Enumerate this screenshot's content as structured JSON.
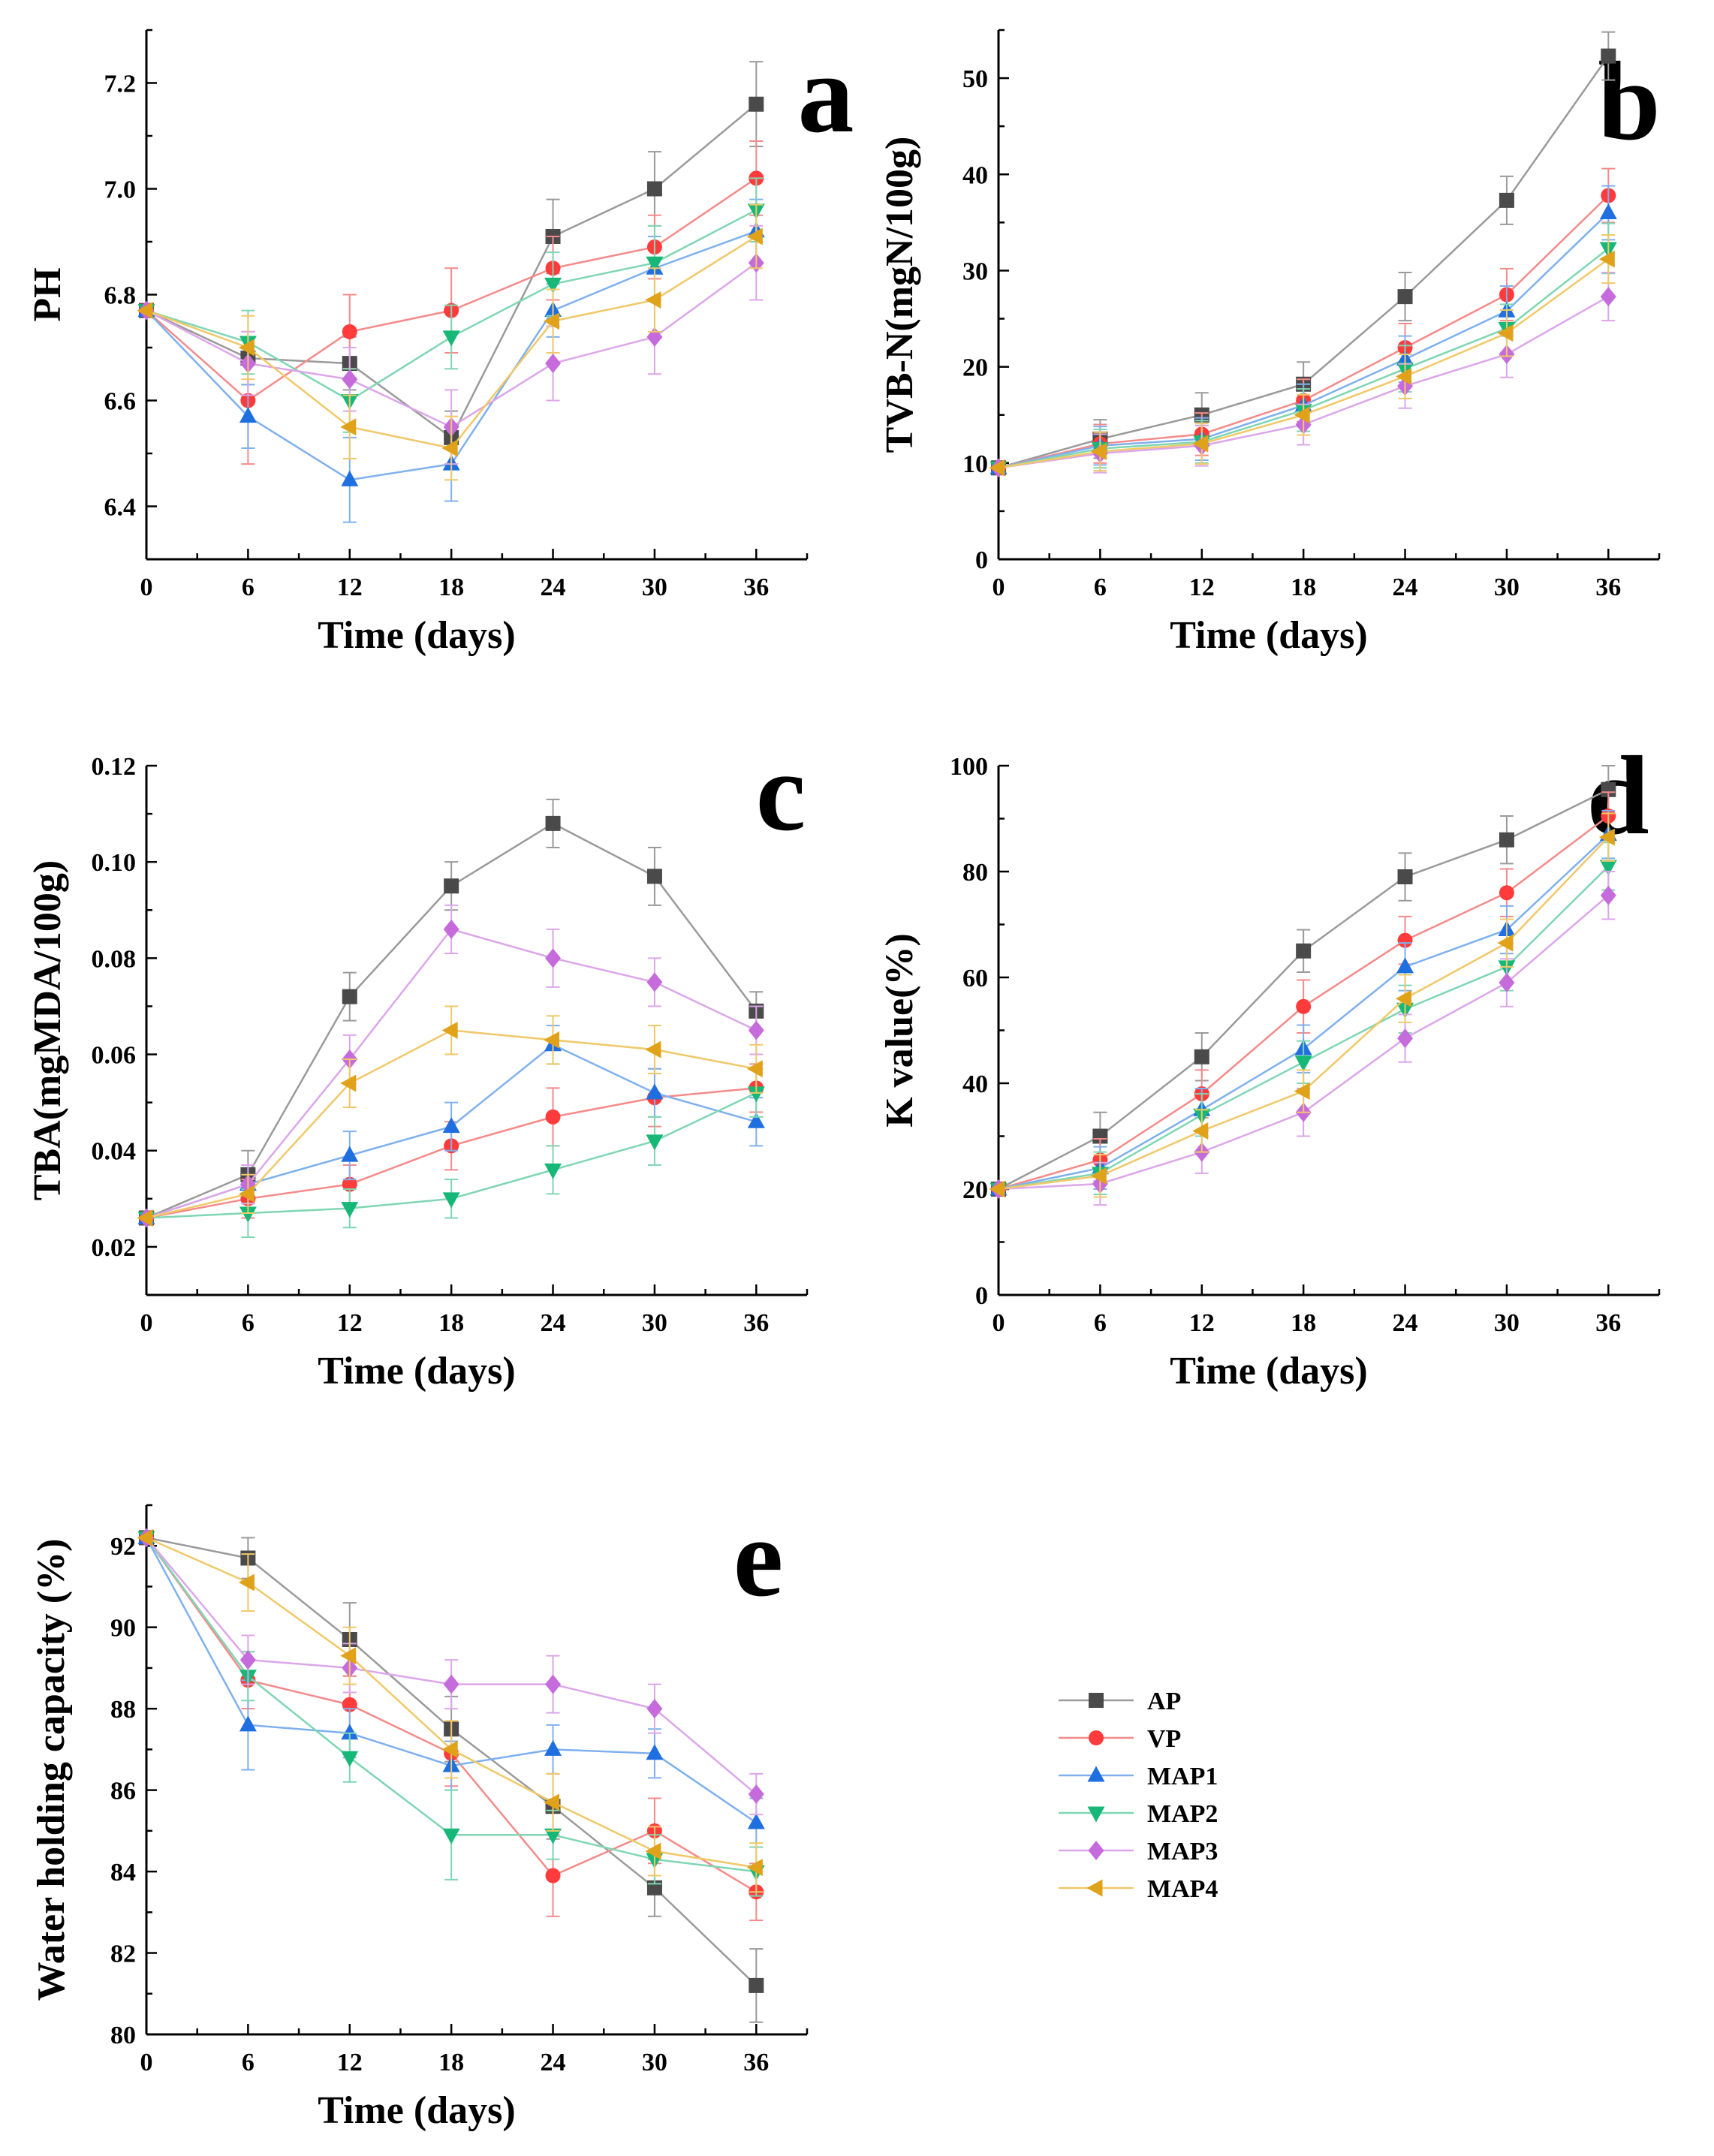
{
  "colors": {
    "AP": "#4a4a4a",
    "VP": "#ff3b3b",
    "MAP1": "#1f6fe0",
    "MAP2": "#17b877",
    "MAP3": "#c66bdc",
    "MAP4": "#e0a21a",
    "AP_line": "#9a9a9a",
    "VP_line": "#f58a8a",
    "MAP1_line": "#7fb0ee",
    "MAP2_line": "#7fd6b3",
    "MAP3_line": "#dca6ea",
    "MAP4_line": "#f0c868"
  },
  "legend": [
    "AP",
    "VP",
    "MAP1",
    "MAP2",
    "MAP3",
    "MAP4"
  ],
  "chart_data": [
    {
      "id": "a",
      "type": "line",
      "panel_label": "a",
      "xlabel": "Time (days)",
      "ylabel": "PH",
      "x": [
        0,
        6,
        12,
        18,
        24,
        30,
        36
      ],
      "x_ticks": [
        "0",
        "6",
        "12",
        "18",
        "24",
        "30",
        "36"
      ],
      "xlim": [
        0,
        39
      ],
      "ylim": [
        6.3,
        7.3
      ],
      "y_ticks": [
        6.4,
        6.6,
        6.8,
        7.0,
        7.2
      ],
      "y_tick_labels": [
        "6.4",
        "6.6",
        "6.8",
        "7.0",
        "7.2"
      ],
      "series": [
        {
          "name": "AP",
          "marker": "square",
          "values": [
            6.77,
            6.68,
            6.67,
            6.53,
            6.91,
            7.0,
            7.16
          ],
          "errors": [
            0.0,
            0.05,
            0.05,
            0.05,
            0.07,
            0.07,
            0.08
          ]
        },
        {
          "name": "VP",
          "marker": "circle",
          "values": [
            6.77,
            6.6,
            6.73,
            6.77,
            6.85,
            6.89,
            7.02
          ],
          "errors": [
            0.0,
            0.12,
            0.07,
            0.08,
            0.06,
            0.06,
            0.07
          ]
        },
        {
          "name": "MAP1",
          "marker": "triangle-up",
          "values": [
            6.77,
            6.57,
            6.45,
            6.48,
            6.77,
            6.85,
            6.92
          ],
          "errors": [
            0.0,
            0.06,
            0.08,
            0.07,
            0.05,
            0.06,
            0.06
          ]
        },
        {
          "name": "MAP2",
          "marker": "triangle-down",
          "values": [
            6.77,
            6.71,
            6.6,
            6.72,
            6.82,
            6.86,
            6.96
          ],
          "errors": [
            0.0,
            0.06,
            0.06,
            0.06,
            0.06,
            0.07,
            0.06
          ]
        },
        {
          "name": "MAP3",
          "marker": "diamond",
          "values": [
            6.77,
            6.67,
            6.64,
            6.55,
            6.67,
            6.72,
            6.86
          ],
          "errors": [
            0.0,
            0.06,
            0.06,
            0.07,
            0.07,
            0.07,
            0.07
          ]
        },
        {
          "name": "MAP4",
          "marker": "triangle-left",
          "values": [
            6.77,
            6.7,
            6.55,
            6.51,
            6.75,
            6.79,
            6.91
          ],
          "errors": [
            0.0,
            0.06,
            0.06,
            0.06,
            0.06,
            0.06,
            0.06
          ]
        }
      ]
    },
    {
      "id": "b",
      "type": "line",
      "panel_label": "b",
      "xlabel": "Time (days)",
      "ylabel": "TVB-N(mgN/100g)",
      "x": [
        0,
        6,
        12,
        18,
        24,
        30,
        36
      ],
      "x_ticks": [
        "0",
        "6",
        "12",
        "18",
        "24",
        "30",
        "36"
      ],
      "xlim": [
        0,
        39
      ],
      "ylim": [
        0,
        55
      ],
      "y_ticks": [
        0,
        10,
        20,
        30,
        40,
        50
      ],
      "y_tick_labels": [
        "0",
        "10",
        "20",
        "30",
        "40",
        "50"
      ],
      "series": [
        {
          "name": "AP",
          "marker": "square",
          "values": [
            9.5,
            12.5,
            15.0,
            18.2,
            27.3,
            37.3,
            52.3
          ],
          "errors": [
            0.0,
            2.0,
            2.3,
            2.3,
            2.5,
            2.5,
            2.5
          ]
        },
        {
          "name": "VP",
          "marker": "circle",
          "values": [
            9.5,
            12.0,
            13.0,
            16.5,
            22.0,
            27.5,
            37.8
          ],
          "errors": [
            0.0,
            2.0,
            2.2,
            2.2,
            2.5,
            2.7,
            2.8
          ]
        },
        {
          "name": "MAP1",
          "marker": "triangle-up",
          "values": [
            9.5,
            11.8,
            12.5,
            16.0,
            20.8,
            25.8,
            36.0
          ],
          "errors": [
            0.0,
            2.0,
            2.2,
            2.2,
            2.4,
            2.6,
            2.8
          ]
        },
        {
          "name": "MAP2",
          "marker": "triangle-down",
          "values": [
            9.5,
            11.5,
            12.2,
            15.5,
            19.8,
            24.0,
            32.3
          ],
          "errors": [
            0.0,
            2.0,
            2.2,
            2.2,
            2.4,
            2.5,
            2.6
          ]
        },
        {
          "name": "MAP3",
          "marker": "diamond",
          "values": [
            9.5,
            11.0,
            11.8,
            14.0,
            18.0,
            21.3,
            27.3
          ],
          "errors": [
            0.0,
            2.0,
            2.1,
            2.1,
            2.3,
            2.4,
            2.5
          ]
        },
        {
          "name": "MAP4",
          "marker": "triangle-left",
          "values": [
            9.5,
            11.2,
            12.0,
            15.0,
            19.0,
            23.5,
            31.2
          ],
          "errors": [
            0.0,
            2.0,
            2.1,
            2.1,
            2.3,
            2.4,
            2.5
          ]
        }
      ]
    },
    {
      "id": "c",
      "type": "line",
      "panel_label": "c",
      "xlabel": "Time (days)",
      "ylabel": "TBA(mgMDA/100g)",
      "x": [
        0,
        6,
        12,
        18,
        24,
        30,
        36
      ],
      "x_ticks": [
        "0",
        "6",
        "12",
        "18",
        "24",
        "30",
        "36"
      ],
      "xlim": [
        0,
        39
      ],
      "ylim": [
        0.01,
        0.12
      ],
      "y_ticks": [
        0.02,
        0.04,
        0.06,
        0.08,
        0.1,
        0.12
      ],
      "y_tick_labels": [
        "0.02",
        "0.04",
        "0.06",
        "0.08",
        "0.10",
        "0.12"
      ],
      "series": [
        {
          "name": "AP",
          "marker": "square",
          "values": [
            0.026,
            0.035,
            0.072,
            0.095,
            0.108,
            0.097,
            0.069
          ],
          "errors": [
            0.0,
            0.005,
            0.005,
            0.005,
            0.005,
            0.006,
            0.004
          ]
        },
        {
          "name": "VP",
          "marker": "circle",
          "values": [
            0.026,
            0.03,
            0.033,
            0.041,
            0.047,
            0.051,
            0.053
          ],
          "errors": [
            0.0,
            0.004,
            0.004,
            0.005,
            0.006,
            0.006,
            0.005
          ]
        },
        {
          "name": "MAP1",
          "marker": "triangle-up",
          "values": [
            0.026,
            0.033,
            0.039,
            0.045,
            0.062,
            0.052,
            0.046
          ],
          "errors": [
            0.0,
            0.004,
            0.005,
            0.005,
            0.004,
            0.005,
            0.005
          ]
        },
        {
          "name": "MAP2",
          "marker": "triangle-down",
          "values": [
            0.026,
            0.027,
            0.028,
            0.03,
            0.036,
            0.042,
            0.052
          ],
          "errors": [
            0.0,
            0.005,
            0.004,
            0.004,
            0.005,
            0.005,
            0.005
          ]
        },
        {
          "name": "MAP3",
          "marker": "diamond",
          "values": [
            0.026,
            0.033,
            0.059,
            0.086,
            0.08,
            0.075,
            0.065
          ],
          "errors": [
            0.0,
            0.004,
            0.005,
            0.005,
            0.006,
            0.005,
            0.005
          ]
        },
        {
          "name": "MAP4",
          "marker": "triangle-left",
          "values": [
            0.026,
            0.031,
            0.054,
            0.065,
            0.063,
            0.061,
            0.057
          ],
          "errors": [
            0.0,
            0.004,
            0.005,
            0.005,
            0.005,
            0.005,
            0.005
          ]
        }
      ]
    },
    {
      "id": "d",
      "type": "line",
      "panel_label": "d",
      "xlabel": "Time (days)",
      "ylabel": "K value(%)",
      "x": [
        0,
        6,
        12,
        18,
        24,
        30,
        36
      ],
      "x_ticks": [
        "0",
        "6",
        "12",
        "18",
        "24",
        "30",
        "36"
      ],
      "xlim": [
        0,
        39
      ],
      "ylim": [
        0,
        100
      ],
      "y_ticks": [
        0,
        20,
        40,
        60,
        80,
        100
      ],
      "y_tick_labels": [
        "0",
        "20",
        "40",
        "60",
        "80",
        "100"
      ],
      "series": [
        {
          "name": "AP",
          "marker": "square",
          "values": [
            20,
            30,
            45,
            65,
            79,
            86,
            95.5
          ],
          "errors": [
            0.0,
            4.5,
            4.5,
            4.0,
            4.5,
            4.5,
            4.5
          ]
        },
        {
          "name": "VP",
          "marker": "circle",
          "values": [
            20,
            25.5,
            38,
            54.5,
            67,
            76,
            90.5
          ],
          "errors": [
            0.0,
            4.0,
            4.5,
            5.0,
            4.5,
            4.5,
            4.5
          ]
        },
        {
          "name": "MAP1",
          "marker": "triangle-up",
          "values": [
            20,
            24,
            35,
            46.5,
            62,
            69,
            87
          ],
          "errors": [
            0.0,
            4.0,
            4.0,
            4.5,
            4.5,
            4.5,
            4.5
          ]
        },
        {
          "name": "MAP2",
          "marker": "triangle-down",
          "values": [
            20,
            23,
            34,
            44,
            54,
            62,
            81
          ],
          "errors": [
            0.0,
            4.0,
            4.0,
            4.0,
            4.5,
            4.5,
            4.5
          ]
        },
        {
          "name": "MAP3",
          "marker": "diamond",
          "values": [
            20,
            21,
            27,
            34.5,
            48.5,
            59,
            75.5
          ],
          "errors": [
            0.0,
            4.0,
            4.0,
            4.5,
            4.5,
            4.5,
            4.5
          ]
        },
        {
          "name": "MAP4",
          "marker": "triangle-left",
          "values": [
            20,
            22.5,
            31,
            38.5,
            56,
            66.5,
            86.5
          ],
          "errors": [
            0.0,
            4.0,
            4.0,
            4.0,
            4.5,
            4.5,
            4.5
          ]
        }
      ]
    },
    {
      "id": "e",
      "type": "line",
      "panel_label": "e",
      "xlabel": "Time (days)",
      "ylabel": "Water holding capacity (%)",
      "x": [
        0,
        6,
        12,
        18,
        24,
        30,
        36
      ],
      "x_ticks": [
        "0",
        "6",
        "12",
        "18",
        "24",
        "30",
        "36"
      ],
      "xlim": [
        0,
        39
      ],
      "ylim": [
        80,
        93
      ],
      "y_ticks": [
        80,
        82,
        84,
        86,
        88,
        90,
        92
      ],
      "y_tick_labels": [
        "80",
        "82",
        "84",
        "86",
        "88",
        "90",
        "92"
      ],
      "series": [
        {
          "name": "AP",
          "marker": "square",
          "values": [
            92.2,
            91.7,
            89.7,
            87.5,
            85.6,
            83.6,
            81.2
          ],
          "errors": [
            0.0,
            0.5,
            0.9,
            0.8,
            0.8,
            0.7,
            0.9
          ]
        },
        {
          "name": "VP",
          "marker": "circle",
          "values": [
            92.2,
            88.7,
            88.1,
            86.9,
            83.9,
            85.0,
            83.5
          ],
          "errors": [
            0.0,
            0.7,
            0.7,
            0.8,
            1.0,
            0.8,
            0.7
          ]
        },
        {
          "name": "MAP1",
          "marker": "triangle-up",
          "values": [
            92.2,
            87.6,
            87.4,
            86.6,
            87.0,
            86.9,
            85.2
          ],
          "errors": [
            0.0,
            1.1,
            0.6,
            0.6,
            0.6,
            0.6,
            0.6
          ]
        },
        {
          "name": "MAP2",
          "marker": "triangle-down",
          "values": [
            92.2,
            88.8,
            86.8,
            84.9,
            84.9,
            84.3,
            84.0
          ],
          "errors": [
            0.0,
            0.6,
            0.6,
            1.1,
            0.6,
            0.6,
            0.6
          ]
        },
        {
          "name": "MAP3",
          "marker": "diamond",
          "values": [
            92.2,
            89.2,
            89.0,
            88.6,
            88.6,
            88.0,
            85.9
          ],
          "errors": [
            0.0,
            0.6,
            0.6,
            0.6,
            0.7,
            0.6,
            0.5
          ]
        },
        {
          "name": "MAP4",
          "marker": "triangle-left",
          "values": [
            92.2,
            91.1,
            89.3,
            87.0,
            85.7,
            84.5,
            84.1
          ],
          "errors": [
            0.0,
            0.7,
            0.7,
            0.7,
            0.7,
            0.6,
            0.6
          ]
        }
      ]
    }
  ]
}
